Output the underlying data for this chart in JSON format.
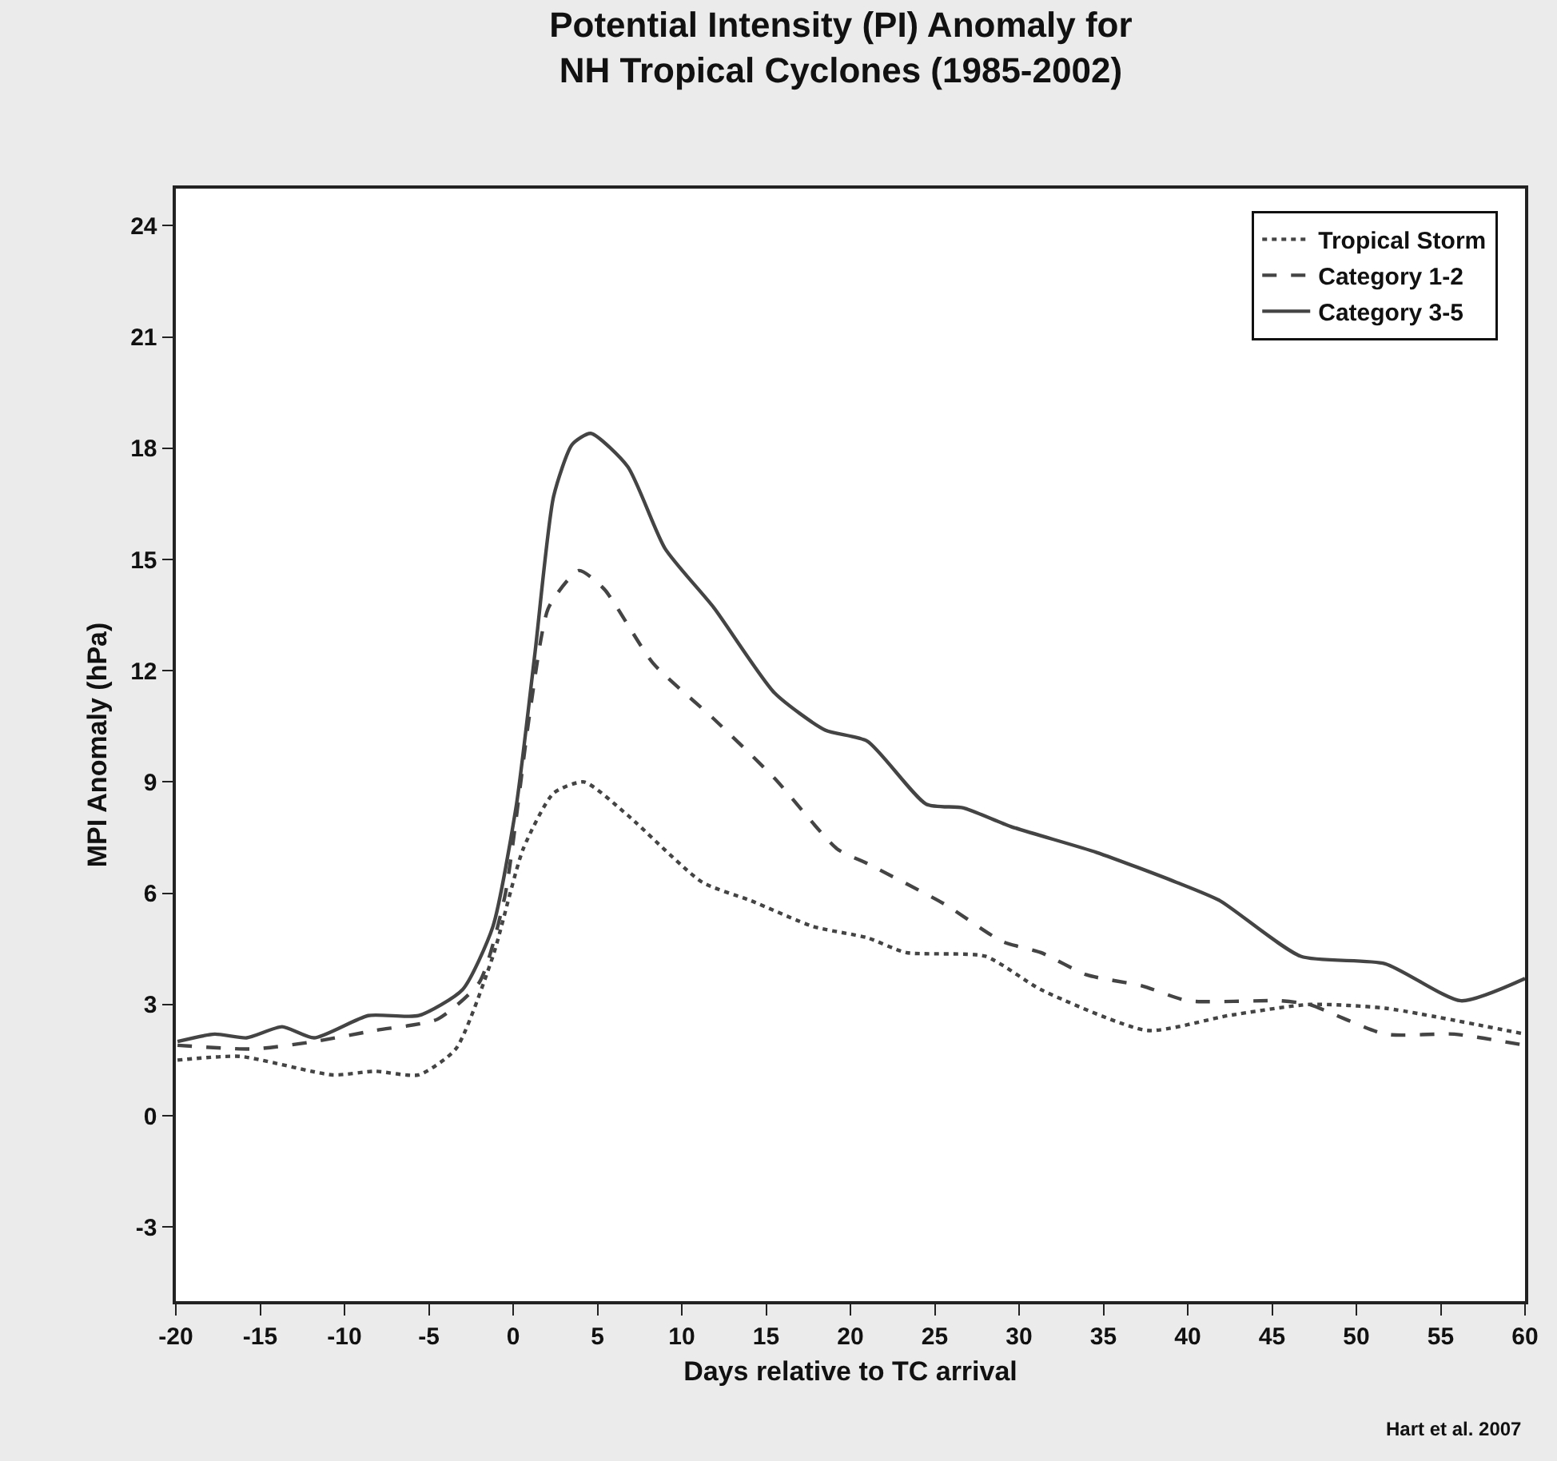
{
  "chart_data": {
    "type": "line",
    "title": "Potential Intensity (PI) Anomaly for\nNH Tropical Cyclones (1985-2002)",
    "xlabel": "Days relative to TC arrival",
    "ylabel": "MPI Anomaly (hPa)",
    "annotations": [
      "Hart et al. 2007"
    ],
    "xlim": [
      -20,
      60
    ],
    "xticks": [
      -20,
      -15,
      -10,
      -5,
      0,
      5,
      10,
      15,
      20,
      25,
      30,
      35,
      40,
      45,
      50,
      55,
      60
    ],
    "ylim": [
      -5,
      25
    ],
    "yticks": [
      -3,
      0,
      3,
      6,
      9,
      12,
      15,
      18,
      21,
      24
    ],
    "legend": "top right",
    "series": [
      {
        "name": "Tropical Storm",
        "color": "#444444",
        "line_style": "dotted",
        "x": [
          -19.9,
          -16.2,
          -10.7,
          -8.2,
          -5.6,
          -3.4,
          -1.2,
          0.6,
          2.4,
          4.2,
          6.8,
          11.2,
          14.1,
          17.8,
          21,
          23.3,
          28,
          31.3,
          37.6,
          42.4,
          47.2,
          51.7,
          60
        ],
        "values": [
          1.5,
          1.6,
          1.1,
          1.2,
          1.1,
          1.8,
          4.3,
          7.2,
          8.7,
          9.0,
          8.1,
          6.3,
          5.8,
          5.1,
          4.8,
          4.4,
          4.3,
          3.4,
          2.3,
          2.7,
          3.0,
          2.9,
          2.2
        ]
      },
      {
        "name": "Category 1-2",
        "color": "#444444",
        "line_style": "dashed",
        "x": [
          -19.9,
          -15.4,
          -11.8,
          -8.2,
          -4.5,
          -2.0,
          -0.5,
          1,
          2.1,
          3.9,
          5.4,
          8.3,
          11.9,
          15.5,
          19.2,
          21,
          25.6,
          29,
          31.3,
          34,
          37.3,
          40,
          45.5,
          47.2,
          51.7,
          55.8,
          60
        ],
        "values": [
          1.9,
          1.8,
          2.0,
          2.3,
          2.6,
          3.6,
          5.9,
          10.9,
          13.7,
          14.7,
          14.2,
          12.2,
          10.7,
          9.1,
          7.2,
          6.8,
          5.7,
          4.7,
          4.4,
          3.8,
          3.5,
          3.1,
          3.1,
          3.0,
          2.2,
          2.2,
          1.9
        ]
      },
      {
        "name": "Category 3-5",
        "color": "#444444",
        "line_style": "solid",
        "x": [
          -19.9,
          -17.7,
          -15.8,
          -13.7,
          -11.8,
          -8.6,
          -5.6,
          -3.0,
          -1.2,
          0.2,
          1.3,
          2.4,
          3.5,
          4.6,
          6.8,
          9.0,
          11.9,
          15.5,
          18.5,
          21,
          24.5,
          26.7,
          29.5,
          34.6,
          39.3,
          41.9,
          46.7,
          51.7,
          56.2,
          60
        ],
        "values": [
          2.0,
          2.2,
          2.1,
          2.4,
          2.1,
          2.7,
          2.7,
          3.4,
          5.1,
          8.4,
          12.5,
          16.7,
          18.1,
          18.4,
          17.5,
          15.3,
          13.7,
          11.4,
          10.4,
          10.1,
          8.4,
          8.3,
          7.8,
          7.1,
          6.3,
          5.8,
          4.3,
          4.1,
          3.1,
          3.7
        ]
      }
    ]
  }
}
